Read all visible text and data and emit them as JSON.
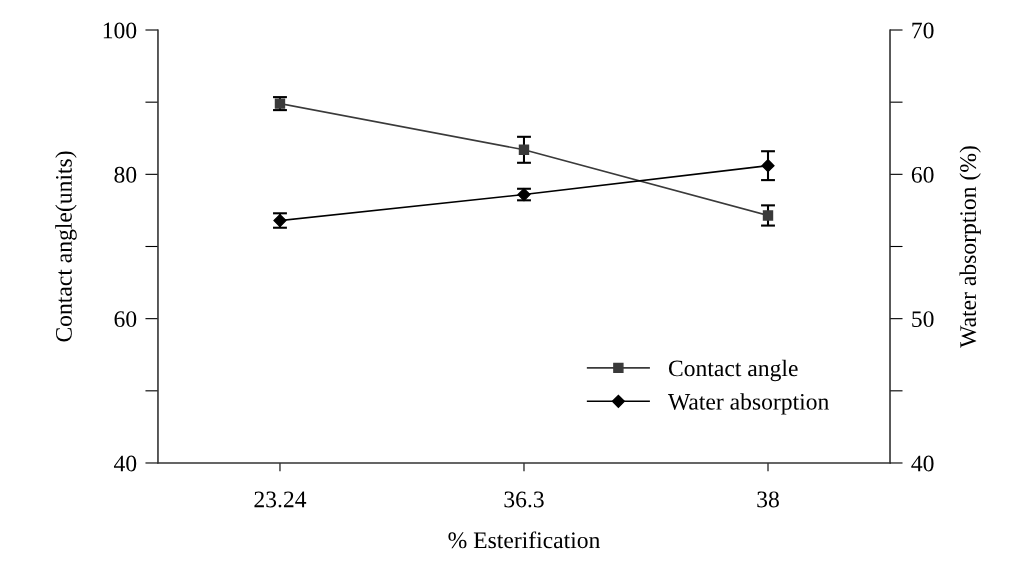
{
  "chart_data": {
    "type": "line",
    "categories": [
      "23.24",
      "36.3",
      "38"
    ],
    "series": [
      {
        "name": "Contact angle",
        "color": "#3a3a3a",
        "marker": "square",
        "values": [
          89.8,
          83.4,
          74.3
        ],
        "errors": [
          0.9,
          1.8,
          1.4
        ]
      },
      {
        "name": "Water absorption",
        "color": "#000000",
        "marker": "diamond",
        "axis": "y2",
        "values": [
          56.8,
          58.6,
          60.6
        ],
        "errors": [
          0.5,
          0.4,
          1.0
        ]
      }
    ],
    "xlabel": "% Esterification",
    "ylabel": "Contact angle(units)",
    "y2label": "Water absorption (%)",
    "ylim": [
      40,
      100
    ],
    "yticks": [
      40,
      {
        "value": 50,
        "label": null
      },
      60,
      {
        "value": 70,
        "label": null
      },
      80,
      {
        "value": 90,
        "label": null
      },
      100
    ],
    "y2lim": [
      40,
      70
    ],
    "y2ticks": [
      40,
      {
        "value": 45,
        "label": null
      },
      50,
      {
        "value": 55,
        "label": null
      },
      60,
      {
        "value": 65,
        "label": null
      },
      70
    ],
    "legend": "bottom right",
    "line_style": "solid"
  }
}
